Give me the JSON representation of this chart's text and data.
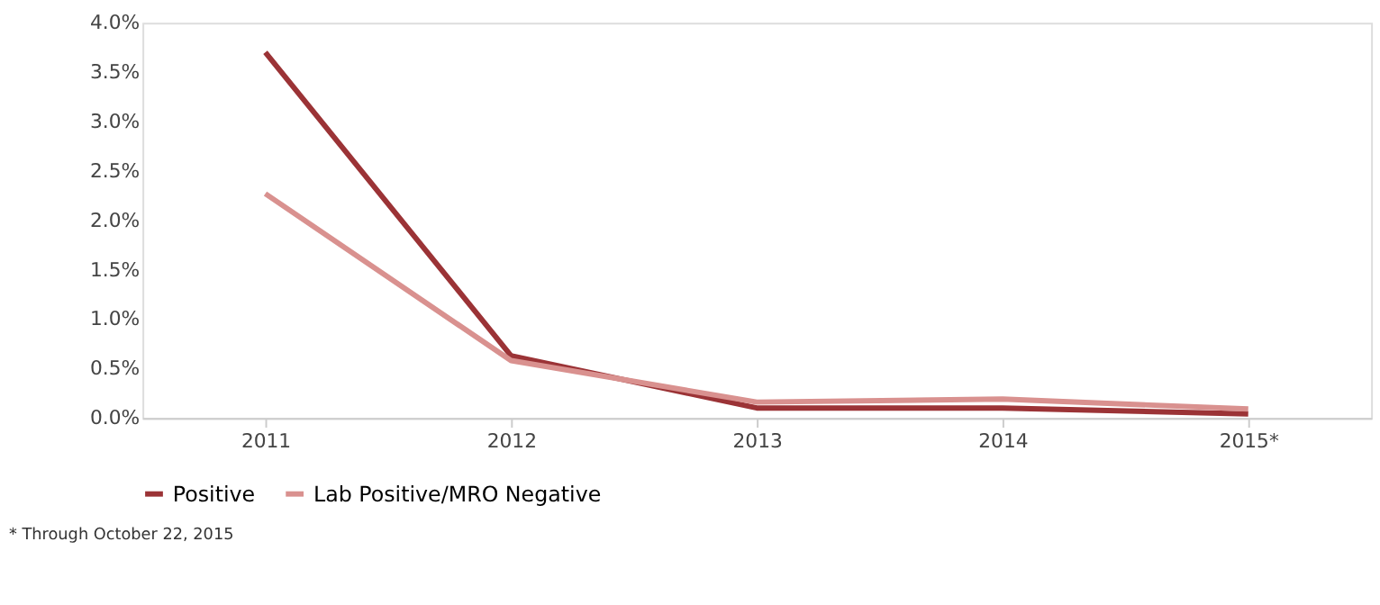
{
  "chart_data": {
    "type": "line",
    "categories": [
      "2011",
      "2012",
      "2013",
      "2014",
      "2015*"
    ],
    "series": [
      {
        "name": "Positive",
        "color": "#9b3336",
        "values": [
          3.7,
          0.63,
          0.1,
          0.1,
          0.04
        ]
      },
      {
        "name": "Lab Positive/MRO  Negative",
        "color": "#d9918f",
        "values": [
          2.27,
          0.58,
          0.16,
          0.19,
          0.09
        ]
      }
    ],
    "ylim": [
      0,
      4
    ],
    "yticks": [
      {
        "value": 0,
        "label": "0.0%"
      },
      {
        "value": 0.5,
        "label": "0.5%"
      },
      {
        "value": 1,
        "label": "1.0%"
      },
      {
        "value": 1.5,
        "label": "1.5%"
      },
      {
        "value": 2,
        "label": "2.0%"
      },
      {
        "value": 2.5,
        "label": "2.5%"
      },
      {
        "value": 3,
        "label": "3.0%"
      },
      {
        "value": 3.5,
        "label": "3.5%"
      },
      {
        "value": 4,
        "label": "4.0%"
      }
    ],
    "grid": false,
    "legend": "bottom",
    "marker": "none",
    "line_style": "solid",
    "annotations": [
      "* Through October 22, 2015"
    ]
  }
}
